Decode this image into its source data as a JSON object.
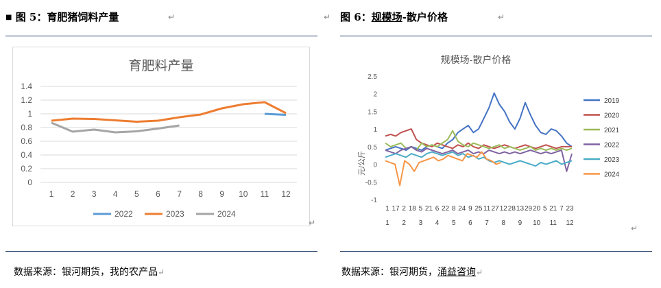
{
  "left": {
    "figure_title": "图 5：育肥猪饲料产量",
    "source": "数据来源：银河期货，我的农产品",
    "return_mark": "↵"
  },
  "right": {
    "figure_title_prefix": "图 6：",
    "figure_title_link": "规模场",
    "figure_title_suffix": "-散户价格",
    "source_prefix": "数据来源：银河期货，",
    "source_link": "涌益咨询",
    "return_mark": "↵"
  },
  "chart_data": [
    {
      "type": "line",
      "title": "育肥料产量",
      "x": [
        1,
        2,
        3,
        4,
        5,
        6,
        7,
        8,
        9,
        10,
        11,
        12
      ],
      "ylim": [
        0,
        1.4
      ],
      "yticks": [
        "0",
        "0.2",
        "0.4",
        "0.6",
        "0.8",
        "1",
        "1.2",
        "1.4"
      ],
      "xticks": [
        "1",
        "2",
        "3",
        "4",
        "5",
        "6",
        "7",
        "8",
        "9",
        "10",
        "11",
        "12"
      ],
      "grid": true,
      "legend_position": "bottom",
      "series": [
        {
          "name": "2022",
          "color": "#5b9bd5",
          "x": [
            11,
            12
          ],
          "values": [
            1.0,
            0.985
          ]
        },
        {
          "name": "2023",
          "color": "#ed7d31",
          "x": [
            1,
            2,
            3,
            4,
            5,
            6,
            7,
            8,
            9,
            10,
            11,
            12
          ],
          "values": [
            0.9,
            0.93,
            0.925,
            0.905,
            0.885,
            0.9,
            0.95,
            0.99,
            1.08,
            1.14,
            1.17,
            1.01
          ]
        },
        {
          "name": "2024",
          "color": "#a5a5a5",
          "x": [
            1,
            2,
            3,
            4,
            5,
            6,
            7
          ],
          "values": [
            0.87,
            0.74,
            0.77,
            0.73,
            0.745,
            0.785,
            0.83
          ]
        }
      ]
    },
    {
      "type": "line",
      "title": "规模场-散户价格",
      "ylabel": "元/公斤",
      "ylim": [
        -1,
        2.5
      ],
      "yticks": [
        "-1",
        "-0.5",
        "0",
        "0.5",
        "1",
        "1.5",
        "2",
        "2.5"
      ],
      "xticks_row1": [
        "1",
        "17",
        "2",
        "18",
        "5",
        "21",
        "6",
        "22",
        "8",
        "24",
        "9",
        "25",
        "11",
        "27",
        "12",
        "28",
        "13",
        "29",
        "20",
        "5",
        "21",
        "7",
        "23"
      ],
      "xticks_row2": [
        "1",
        "2",
        "3",
        "4",
        "5",
        "6",
        "7",
        "8",
        "9",
        "10",
        "11",
        "12"
      ],
      "legend_position": "right",
      "series": [
        {
          "name": "2019",
          "color": "#4472c4",
          "values": [
            0.4,
            0.45,
            0.5,
            0.45,
            0.4,
            0.5,
            0.45,
            0.4,
            0.5,
            0.55,
            0.5,
            0.45,
            0.6,
            0.7,
            0.9,
            1.0,
            1.1,
            0.9,
            1.0,
            1.3,
            1.6,
            2.02,
            1.7,
            1.5,
            1.2,
            1.0,
            1.3,
            1.75,
            1.4,
            1.1,
            0.9,
            0.85,
            1.0,
            0.95,
            0.8,
            0.6,
            0.5
          ]
        },
        {
          "name": "2020",
          "color": "#c0504d",
          "values": [
            0.8,
            0.85,
            0.8,
            0.9,
            0.95,
            1.0,
            0.7,
            0.6,
            0.55,
            0.5,
            0.6,
            0.55,
            0.5,
            0.45,
            0.55,
            0.5,
            0.6,
            0.5,
            0.45,
            0.55,
            0.5,
            0.45,
            0.5,
            0.55,
            0.5,
            0.45,
            0.5,
            0.55,
            0.5,
            0.45,
            0.5,
            0.55,
            0.5,
            0.45,
            0.5,
            0.5,
            0.5
          ]
        },
        {
          "name": "2021",
          "color": "#9bbb59",
          "values": [
            0.6,
            0.5,
            0.55,
            0.6,
            0.45,
            0.5,
            0.4,
            0.6,
            0.5,
            0.55,
            0.5,
            0.6,
            0.7,
            0.95,
            0.65,
            0.55,
            0.5,
            0.6,
            0.55,
            0.5,
            0.45,
            0.5,
            0.55,
            0.45,
            0.5,
            0.45,
            0.4,
            0.45,
            0.5,
            0.4,
            0.45,
            0.4,
            0.45,
            0.4,
            0.45,
            0.4,
            0.45
          ]
        },
        {
          "name": "2022",
          "color": "#8064a2",
          "values": [
            0.4,
            0.35,
            0.3,
            0.4,
            0.45,
            0.5,
            0.4,
            0.35,
            0.45,
            0.4,
            0.35,
            0.3,
            0.35,
            0.4,
            0.3,
            0.35,
            0.4,
            0.3,
            0.35,
            0.3,
            0.4,
            0.35,
            0.3,
            0.35,
            0.3,
            0.35,
            0.3,
            0.35,
            0.4,
            0.35,
            0.3,
            0.35,
            0.3,
            0.35,
            0.4,
            -0.2,
            0.3
          ]
        },
        {
          "name": "2023",
          "color": "#4bacc6",
          "values": [
            0.2,
            0.25,
            0.3,
            0.25,
            0.2,
            0.3,
            0.25,
            0.2,
            0.3,
            0.35,
            0.3,
            0.25,
            0.3,
            0.35,
            0.25,
            0.3,
            0.2,
            0.25,
            0.15,
            0.2,
            0.1,
            0.05,
            0.1,
            0.05,
            0.0,
            0.05,
            0.1,
            0.05,
            0.0,
            -0.05,
            0.05,
            0.0,
            0.05,
            0.1,
            0.0,
            0.05,
            0.1
          ]
        },
        {
          "name": "2024",
          "color": "#f79646",
          "values": [
            0.1,
            0.05,
            0.0,
            -0.6,
            0.1,
            0.0,
            -0.2,
            0.05,
            0.1,
            0.15,
            0.2,
            0.1,
            0.15,
            0.25,
            0.2,
            0.15,
            0.1,
            0.3,
            0.25,
            0.2,
            0.35,
            0.15,
            0.1,
            0.0,
            0.05
          ]
        }
      ]
    }
  ]
}
